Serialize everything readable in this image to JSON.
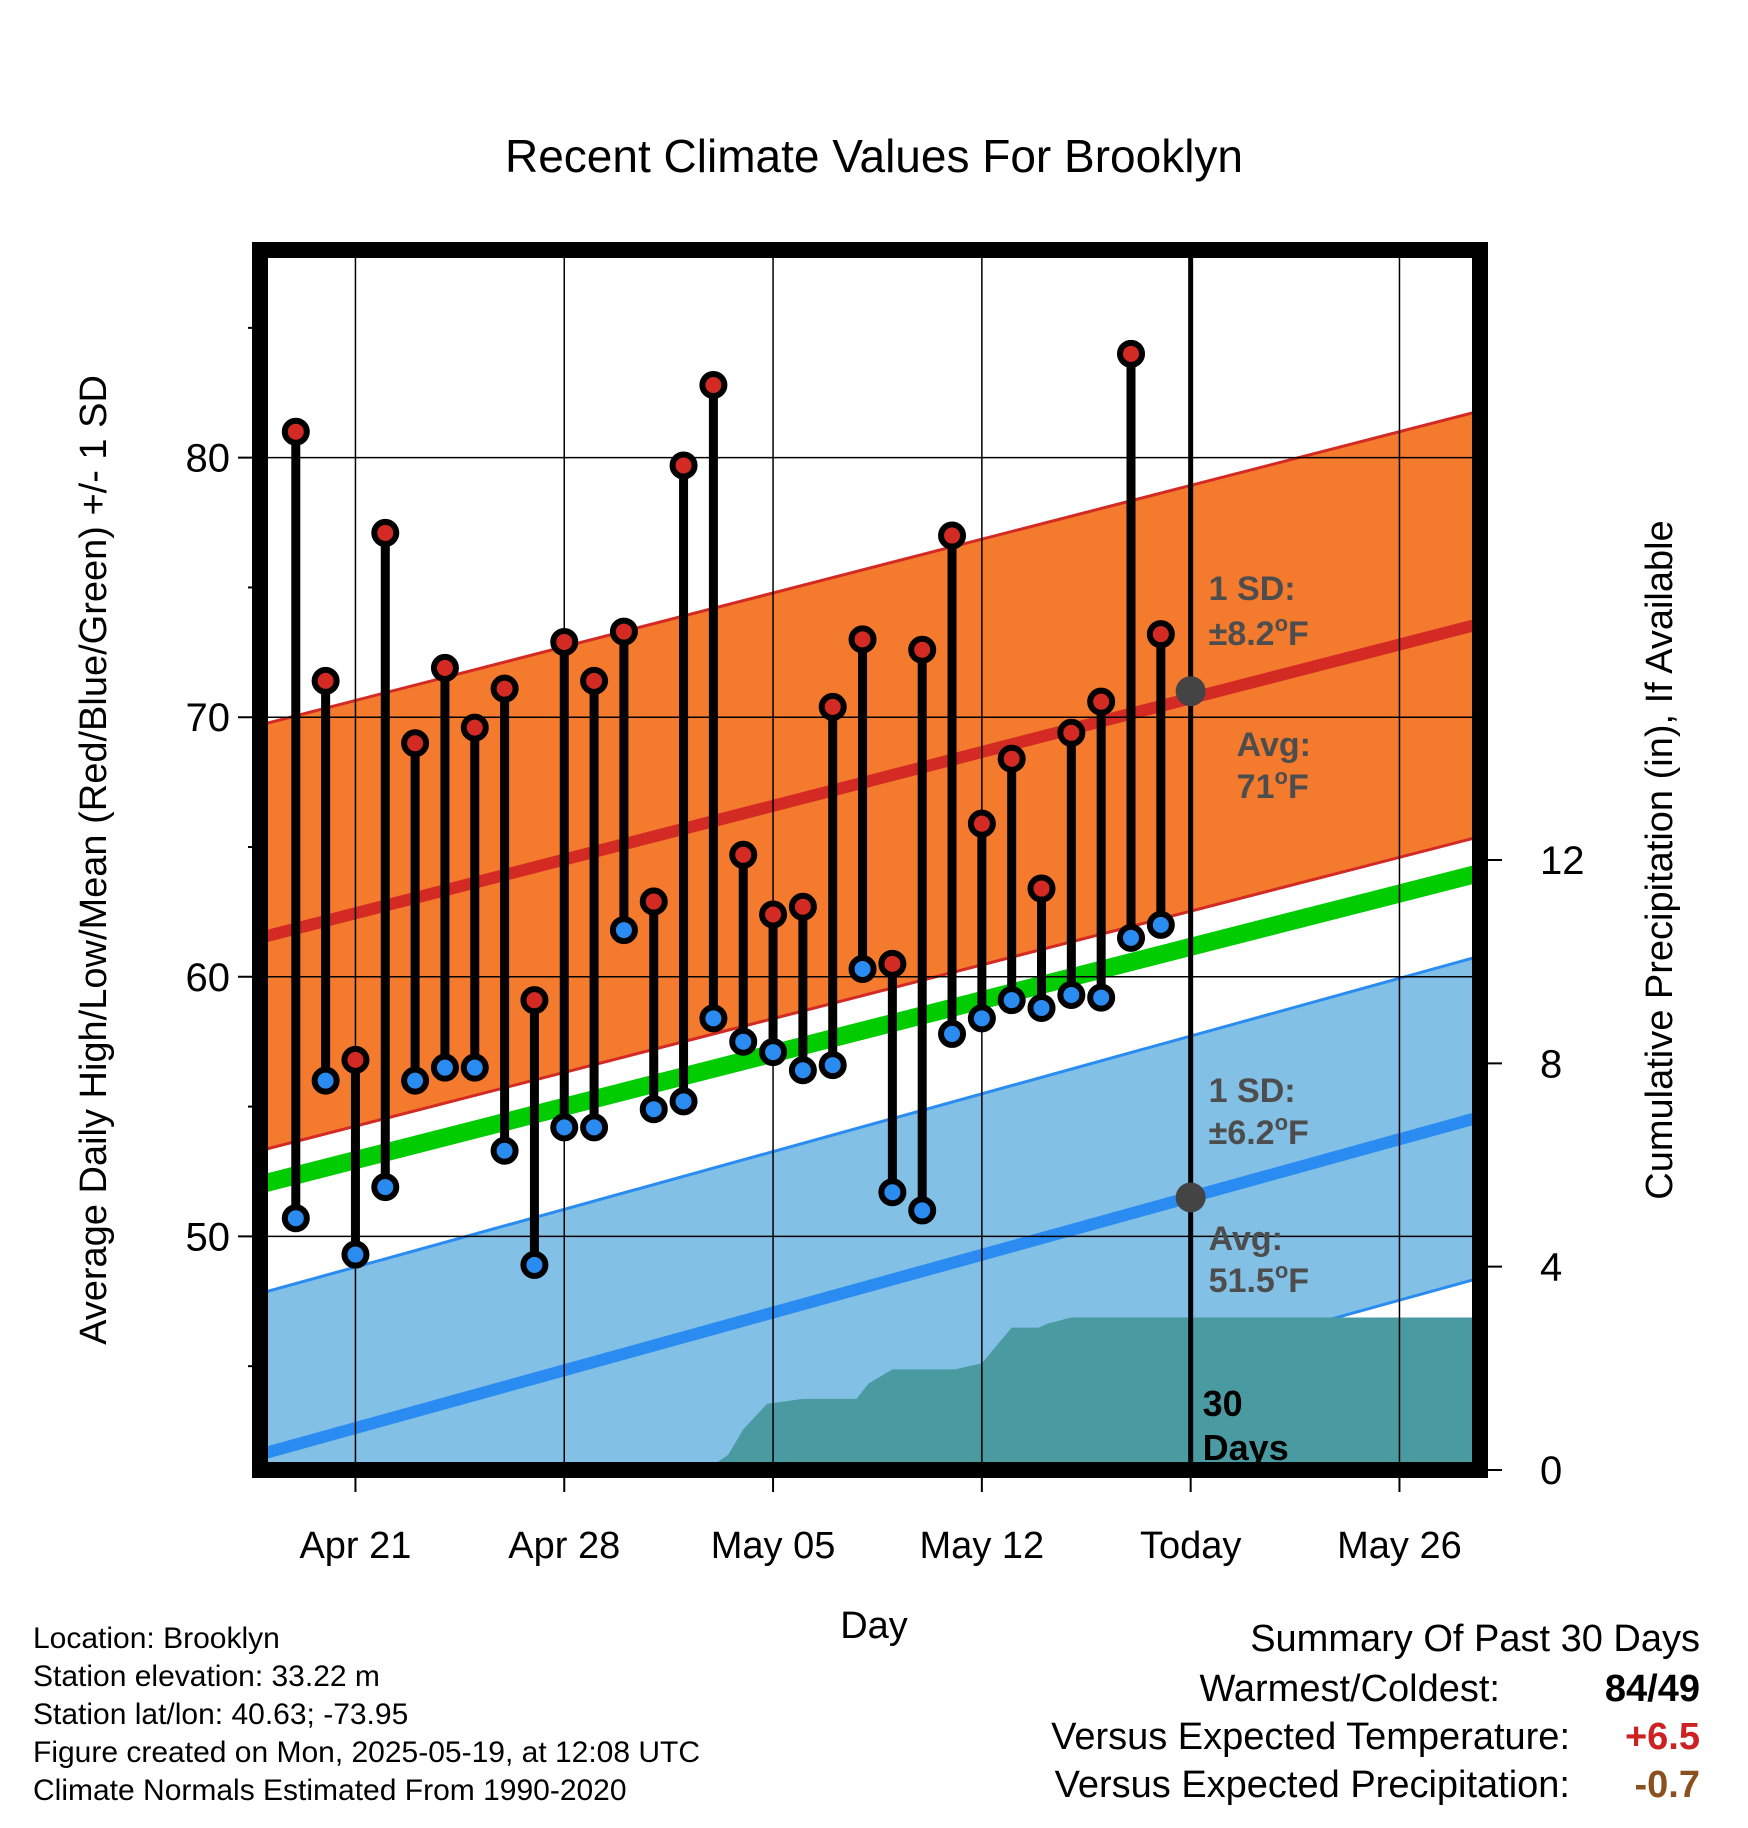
{
  "chart_data": {
    "type": "line",
    "title": "Recent Climate Values For Brooklyn",
    "xlabel": "Day",
    "ylabel": "Average Daily High/Low/Mean (Red/Blue/Green) +/- 1 SD",
    "y2label": "Cumulative Precipitation (in), If Available",
    "ylim": [
      41,
      88
    ],
    "y2lim": [
      0,
      24
    ],
    "x_range_days_from_today": [
      -31.2,
      9.7
    ],
    "yticks": [
      50,
      60,
      70,
      80
    ],
    "y_minor_ticks": [
      45,
      55,
      65,
      75,
      85
    ],
    "y2ticks": [
      0,
      4,
      8,
      12
    ],
    "xticks": [
      {
        "offset": -28,
        "label": "Apr 21"
      },
      {
        "offset": -21,
        "label": "Apr 28"
      },
      {
        "offset": -14,
        "label": "May 05"
      },
      {
        "offset": -7,
        "label": "May 12"
      },
      {
        "offset": 0,
        "label": "Today"
      },
      {
        "offset": 7,
        "label": "May 26"
      }
    ],
    "grid": true,
    "normals": {
      "high_mean_start": 61.5,
      "high_mean_end": 73.6,
      "high_sd": 8.2,
      "low_mean_start": 41.6,
      "low_mean_end": 54.6,
      "low_sd": 6.2,
      "mean_start": 52.0,
      "mean_end": 64.0
    },
    "today_markers": {
      "high": 71,
      "low": 51.5
    },
    "daily": {
      "day_offsets": [
        -30,
        -29,
        -28,
        -27,
        -26,
        -25,
        -24,
        -23,
        -22,
        -21,
        -20,
        -19,
        -18,
        -17,
        -16,
        -15,
        -14,
        -13,
        -12,
        -11,
        -10,
        -9,
        -8,
        -7,
        -6,
        -5,
        -4,
        -3,
        -2,
        -1
      ],
      "highs": [
        81,
        71.4,
        56.8,
        77.1,
        69,
        71.9,
        69.6,
        71.1,
        59.1,
        72.9,
        71.4,
        73.3,
        62.9,
        79.7,
        82.8,
        64.7,
        62.4,
        62.7,
        70.4,
        73,
        60.5,
        72.6,
        77,
        65.9,
        68.4,
        63.4,
        69.4,
        70.6,
        84,
        73.2
      ],
      "lows": [
        50.7,
        56,
        49.3,
        51.9,
        56,
        56.5,
        56.5,
        53.3,
        48.9,
        54.2,
        54.2,
        61.8,
        54.9,
        55.2,
        58.4,
        57.5,
        57.1,
        56.4,
        56.6,
        60.3,
        51.7,
        51,
        57.8,
        58.4,
        59.1,
        58.8,
        59.3,
        59.2,
        61.5,
        62
      ]
    },
    "precip_cumulative": {
      "day_offsets": [
        -31.2,
        -23.5,
        -16.2,
        -15.5,
        -15,
        -14.2,
        -13,
        -11.2,
        -10.8,
        -10,
        -9.8,
        -7.9,
        -7,
        -6,
        -5.1,
        -4.8,
        -4,
        -3,
        -2,
        9.7
      ],
      "values": [
        0,
        0.02,
        0.02,
        0.3,
        0.8,
        1.3,
        1.4,
        1.4,
        1.7,
        1.98,
        1.98,
        1.98,
        2.1,
        2.8,
        2.8,
        2.88,
        3,
        3,
        3,
        3
      ]
    },
    "annotations": {
      "high_sd_label": "1 SD:",
      "high_sd_value": "±8.2",
      "high_avg_label": "Avg:",
      "high_avg_value": "71",
      "low_sd_label": "1 SD:",
      "low_sd_value": "±6.2",
      "low_avg_label": "Avg:",
      "low_avg_value": "51.5",
      "degree_unit": "o",
      "unit_letter": "F",
      "window_label_line1": "30",
      "window_label_line2": "Days"
    },
    "colors": {
      "high_band": "#f47a2e",
      "high_line": "#d42a24",
      "low_band": "#82c0e6",
      "low_line": "#2a8cf0",
      "mean_line": "#00cc00",
      "precip": "#4a9aa2",
      "high_dot": "#d42a24",
      "low_dot": "#2a8cf0",
      "today_dot": "#444444",
      "annotation_text": "#4d4d4d"
    }
  },
  "info": {
    "location": "Location: Brooklyn",
    "elevation": "Station elevation: 33.22 m",
    "latlon": "Station lat/lon: 40.63; -73.95",
    "created": "Figure created on Mon, 2025-05-19, at 12:08 UTC",
    "normals_period": "Climate Normals Estimated From 1990-2020"
  },
  "summary": {
    "title": "Summary Of Past 30 Days",
    "warmest_coldest_label": "Warmest/Coldest:",
    "warmest": "84",
    "separator": "/",
    "coldest": "49",
    "temp_label": "Versus Expected Temperature:",
    "temp_value": "+6.5",
    "temp_color": "#cc2222",
    "precip_label": "Versus Expected Precipitation:",
    "precip_value": "-0.7",
    "precip_color": "#8a5020"
  }
}
